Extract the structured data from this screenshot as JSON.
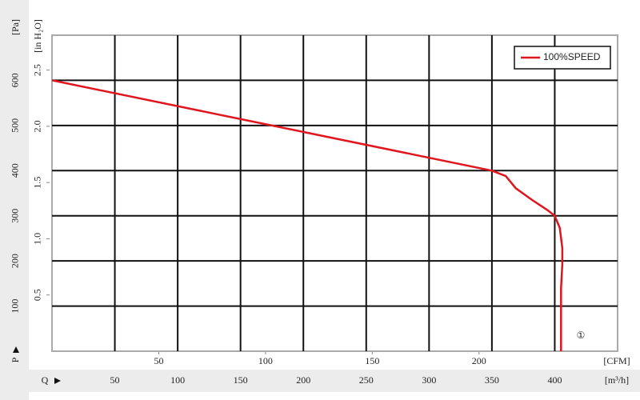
{
  "chart_data": {
    "type": "line",
    "x_label": "Q",
    "y_label": "P",
    "x_unit": "[m³/h]",
    "y_unit": "[Pa]",
    "x2_unit": "[CFM]",
    "y2_unit": "[in H₂O]",
    "xlim": [
      0,
      450
    ],
    "ylim": [
      0,
      700
    ],
    "xticks": [
      50,
      100,
      150,
      200,
      250,
      300,
      350,
      400
    ],
    "yticks": [
      100,
      200,
      300,
      400,
      500,
      600
    ],
    "x2lim": [
      0,
      264.9
    ],
    "x2ticks": [
      50,
      100,
      150,
      200
    ],
    "y2lim": [
      0,
      2.81
    ],
    "y2ticks": [
      0.5,
      {
        "value": 1,
        "label": "1.0"
      },
      1.5,
      {
        "value": 2,
        "label": "2.0"
      },
      2.5
    ],
    "grid": true,
    "legend": "upper right",
    "annotation": "①",
    "series": [
      {
        "name": "100%SPEED",
        "color": "#e0161e",
        "x": [
          0,
          175,
          350,
          361,
          369,
          382,
          394,
          400,
          404,
          406,
          406,
          405,
          405
        ],
        "values": [
          600,
          500,
          400,
          388,
          361,
          335,
          313,
          300,
          273,
          228,
          193,
          140,
          0
        ]
      }
    ]
  }
}
